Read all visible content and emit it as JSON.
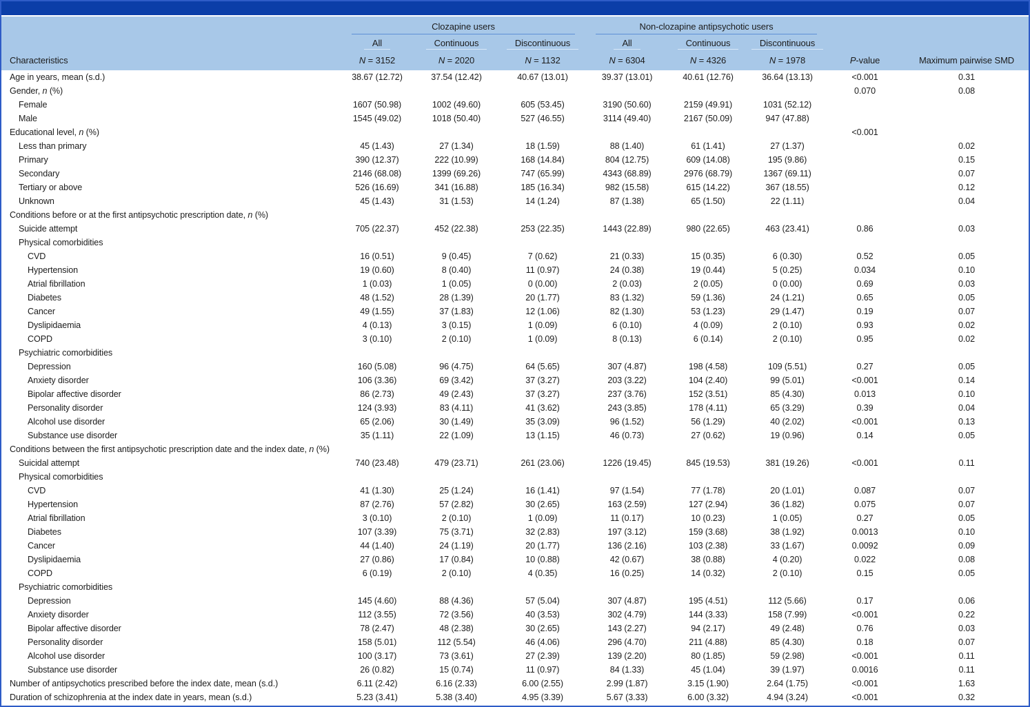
{
  "colors": {
    "top_bar": "#0b3ea8",
    "header_band": "#a8c8e8",
    "frame_border": "#2e5cc7",
    "group_rule": "#5c8fd6",
    "text": "#1c1c1c"
  },
  "header": {
    "characteristics_label": "Characteristics",
    "pvalue_label": "<i>P</i>-value",
    "smd_label": "Maximum pairwise SMD",
    "groups": [
      {
        "label": "Clozapine users",
        "cols": [
          {
            "label": "All",
            "n": "<i>N</i> = 3152"
          },
          {
            "label": "Continuous",
            "n": "<i>N</i> = 2020"
          },
          {
            "label": "Discontinuous",
            "n": "<i>N</i> = 1132"
          }
        ]
      },
      {
        "label": "Non-clozapine antipsychotic users",
        "cols": [
          {
            "label": "All",
            "n": "<i>N</i> = 6304"
          },
          {
            "label": "Continuous",
            "n": "<i>N</i> = 4326"
          },
          {
            "label": "Discontinuous",
            "n": "<i>N</i> = 1978"
          }
        ]
      }
    ]
  },
  "rows": [
    {
      "indent": 0,
      "label": "Age in years, mean (s.d.)",
      "values": [
        "38.67 (12.72)",
        "37.54 (12.42)",
        "40.67 (13.01)",
        "39.37 (13.01)",
        "40.61 (12.76)",
        "36.64 (13.13)"
      ],
      "p": "<0.001",
      "smd": "0.31"
    },
    {
      "indent": 0,
      "label": "Gender, <i>n</i> (%)",
      "values": [
        "",
        "",
        "",
        "",
        "",
        ""
      ],
      "p": "0.070",
      "smd": "0.08"
    },
    {
      "indent": 1,
      "label": "Female",
      "values": [
        "1607 (50.98)",
        "1002 (49.60)",
        "605 (53.45)",
        "3190 (50.60)",
        "2159 (49.91)",
        "1031 (52.12)"
      ],
      "p": "",
      "smd": ""
    },
    {
      "indent": 1,
      "label": "Male",
      "values": [
        "1545 (49.02)",
        "1018 (50.40)",
        "527 (46.55)",
        "3114 (49.40)",
        "2167 (50.09)",
        "947 (47.88)"
      ],
      "p": "",
      "smd": ""
    },
    {
      "indent": 0,
      "label": "Educational level, <i>n</i> (%)",
      "values": [
        "",
        "",
        "",
        "",
        "",
        ""
      ],
      "p": "<0.001",
      "smd": ""
    },
    {
      "indent": 1,
      "label": "Less than primary",
      "values": [
        "45 (1.43)",
        "27 (1.34)",
        "18 (1.59)",
        "88 (1.40)",
        "61 (1.41)",
        "27 (1.37)"
      ],
      "p": "",
      "smd": "0.02"
    },
    {
      "indent": 1,
      "label": "Primary",
      "values": [
        "390 (12.37)",
        "222 (10.99)",
        "168 (14.84)",
        "804 (12.75)",
        "609 (14.08)",
        "195 (9.86)"
      ],
      "p": "",
      "smd": "0.15"
    },
    {
      "indent": 1,
      "label": "Secondary",
      "values": [
        "2146 (68.08)",
        "1399 (69.26)",
        "747 (65.99)",
        "4343 (68.89)",
        "2976 (68.79)",
        "1367 (69.11)"
      ],
      "p": "",
      "smd": "0.07"
    },
    {
      "indent": 1,
      "label": "Tertiary or above",
      "values": [
        "526 (16.69)",
        "341 (16.88)",
        "185 (16.34)",
        "982 (15.58)",
        "615 (14.22)",
        "367 (18.55)"
      ],
      "p": "",
      "smd": "0.12"
    },
    {
      "indent": 1,
      "label": "Unknown",
      "values": [
        "45 (1.43)",
        "31 (1.53)",
        "14 (1.24)",
        "87 (1.38)",
        "65 (1.50)",
        "22 (1.11)"
      ],
      "p": "",
      "smd": "0.04"
    },
    {
      "indent": 0,
      "label": "Conditions before or at the first antipsychotic prescription date, <i>n</i> (%)",
      "values": [
        "",
        "",
        "",
        "",
        "",
        ""
      ],
      "p": "",
      "smd": ""
    },
    {
      "indent": 1,
      "label": "Suicide attempt",
      "values": [
        "705 (22.37)",
        "452 (22.38)",
        "253 (22.35)",
        "1443 (22.89)",
        "980 (22.65)",
        "463 (23.41)"
      ],
      "p": "0.86",
      "smd": "0.03"
    },
    {
      "indent": 1,
      "label": "Physical comorbidities",
      "values": [
        "",
        "",
        "",
        "",
        "",
        ""
      ],
      "p": "",
      "smd": ""
    },
    {
      "indent": 2,
      "label": "CVD",
      "values": [
        "16 (0.51)",
        "9 (0.45)",
        "7 (0.62)",
        "21 (0.33)",
        "15 (0.35)",
        "6 (0.30)"
      ],
      "p": "0.52",
      "smd": "0.05"
    },
    {
      "indent": 2,
      "label": "Hypertension",
      "values": [
        "19 (0.60)",
        "8 (0.40)",
        "11 (0.97)",
        "24 (0.38)",
        "19 (0.44)",
        "5 (0.25)"
      ],
      "p": "0.034",
      "smd": "0.10"
    },
    {
      "indent": 2,
      "label": "Atrial fibrillation",
      "values": [
        "1 (0.03)",
        "1 (0.05)",
        "0 (0.00)",
        "2 (0.03)",
        "2 (0.05)",
        "0 (0.00)"
      ],
      "p": "0.69",
      "smd": "0.03"
    },
    {
      "indent": 2,
      "label": "Diabetes",
      "values": [
        "48 (1.52)",
        "28 (1.39)",
        "20 (1.77)",
        "83 (1.32)",
        "59 (1.36)",
        "24 (1.21)"
      ],
      "p": "0.65",
      "smd": "0.05"
    },
    {
      "indent": 2,
      "label": "Cancer",
      "values": [
        "49 (1.55)",
        "37 (1.83)",
        "12 (1.06)",
        "82 (1.30)",
        "53 (1.23)",
        "29 (1.47)"
      ],
      "p": "0.19",
      "smd": "0.07"
    },
    {
      "indent": 2,
      "label": "Dyslipidaemia",
      "values": [
        "4 (0.13)",
        "3 (0.15)",
        "1 (0.09)",
        "6 (0.10)",
        "4 (0.09)",
        "2 (0.10)"
      ],
      "p": "0.93",
      "smd": "0.02"
    },
    {
      "indent": 2,
      "label": "COPD",
      "values": [
        "3 (0.10)",
        "2 (0.10)",
        "1 (0.09)",
        "8 (0.13)",
        "6 (0.14)",
        "2 (0.10)"
      ],
      "p": "0.95",
      "smd": "0.02"
    },
    {
      "indent": 1,
      "label": "Psychiatric comorbidities",
      "values": [
        "",
        "",
        "",
        "",
        "",
        ""
      ],
      "p": "",
      "smd": ""
    },
    {
      "indent": 2,
      "label": "Depression",
      "values": [
        "160 (5.08)",
        "96 (4.75)",
        "64 (5.65)",
        "307 (4.87)",
        "198 (4.58)",
        "109 (5.51)"
      ],
      "p": "0.27",
      "smd": "0.05"
    },
    {
      "indent": 2,
      "label": "Anxiety disorder",
      "values": [
        "106 (3.36)",
        "69 (3.42)",
        "37 (3.27)",
        "203 (3.22)",
        "104 (2.40)",
        "99 (5.01)"
      ],
      "p": "<0.001",
      "smd": "0.14"
    },
    {
      "indent": 2,
      "label": "Bipolar affective disorder",
      "values": [
        "86 (2.73)",
        "49 (2.43)",
        "37 (3.27)",
        "237 (3.76)",
        "152 (3.51)",
        "85 (4.30)"
      ],
      "p": "0.013",
      "smd": "0.10"
    },
    {
      "indent": 2,
      "label": "Personality disorder",
      "values": [
        "124 (3.93)",
        "83 (4.11)",
        "41 (3.62)",
        "243 (3.85)",
        "178 (4.11)",
        "65 (3.29)"
      ],
      "p": "0.39",
      "smd": "0.04"
    },
    {
      "indent": 2,
      "label": "Alcohol use disorder",
      "values": [
        "65 (2.06)",
        "30 (1.49)",
        "35 (3.09)",
        "96 (1.52)",
        "56 (1.29)",
        "40 (2.02)"
      ],
      "p": "<0.001",
      "smd": "0.13"
    },
    {
      "indent": 2,
      "label": "Substance use disorder",
      "values": [
        "35 (1.11)",
        "22 (1.09)",
        "13 (1.15)",
        "46 (0.73)",
        "27 (0.62)",
        "19 (0.96)"
      ],
      "p": "0.14",
      "smd": "0.05"
    },
    {
      "indent": 0,
      "label": "Conditions between the first antipsychotic prescription date and the index date, <i>n</i> (%)",
      "values": [
        "",
        "",
        "",
        "",
        "",
        ""
      ],
      "p": "",
      "smd": ""
    },
    {
      "indent": 1,
      "label": "Suicidal attempt",
      "values": [
        "740 (23.48)",
        "479 (23.71)",
        "261 (23.06)",
        "1226 (19.45)",
        "845 (19.53)",
        "381 (19.26)"
      ],
      "p": "<0.001",
      "smd": "0.11"
    },
    {
      "indent": 1,
      "label": "Physical comorbidities",
      "values": [
        "",
        "",
        "",
        "",
        "",
        ""
      ],
      "p": "",
      "smd": ""
    },
    {
      "indent": 2,
      "label": "CVD",
      "values": [
        "41 (1.30)",
        "25 (1.24)",
        "16 (1.41)",
        "97 (1.54)",
        "77 (1.78)",
        "20 (1.01)"
      ],
      "p": "0.087",
      "smd": "0.07"
    },
    {
      "indent": 2,
      "label": "Hypertension",
      "values": [
        "87 (2.76)",
        "57 (2.82)",
        "30 (2.65)",
        "163 (2.59)",
        "127 (2.94)",
        "36 (1.82)"
      ],
      "p": "0.075",
      "smd": "0.07"
    },
    {
      "indent": 2,
      "label": "Atrial fibrillation",
      "values": [
        "3 (0.10)",
        "2 (0.10)",
        "1 (0.09)",
        "11 (0.17)",
        "10 (0.23)",
        "1 (0.05)"
      ],
      "p": "0.27",
      "smd": "0.05"
    },
    {
      "indent": 2,
      "label": "Diabetes",
      "values": [
        "107 (3.39)",
        "75 (3.71)",
        "32 (2.83)",
        "197 (3.12)",
        "159 (3.68)",
        "38 (1.92)"
      ],
      "p": "0.0013",
      "smd": "0.10"
    },
    {
      "indent": 2,
      "label": "Cancer",
      "values": [
        "44 (1.40)",
        "24 (1.19)",
        "20 (1.77)",
        "136 (2.16)",
        "103 (2.38)",
        "33 (1.67)"
      ],
      "p": "0.0092",
      "smd": "0.09"
    },
    {
      "indent": 2,
      "label": "Dyslipidaemia",
      "values": [
        "27 (0.86)",
        "17 (0.84)",
        "10 (0.88)",
        "42 (0.67)",
        "38 (0.88)",
        "4 (0.20)"
      ],
      "p": "0.022",
      "smd": "0.08"
    },
    {
      "indent": 2,
      "label": "COPD",
      "values": [
        "6 (0.19)",
        "2 (0.10)",
        "4 (0.35)",
        "16 (0.25)",
        "14 (0.32)",
        "2 (0.10)"
      ],
      "p": "0.15",
      "smd": "0.05"
    },
    {
      "indent": 1,
      "label": "Psychiatric comorbidities",
      "values": [
        "",
        "",
        "",
        "",
        "",
        ""
      ],
      "p": "",
      "smd": ""
    },
    {
      "indent": 2,
      "label": "Depression",
      "values": [
        "145 (4.60)",
        "88 (4.36)",
        "57 (5.04)",
        "307 (4.87)",
        "195 (4.51)",
        "112 (5.66)"
      ],
      "p": "0.17",
      "smd": "0.06"
    },
    {
      "indent": 2,
      "label": "Anxiety disorder",
      "values": [
        "112 (3.55)",
        "72 (3.56)",
        "40 (3.53)",
        "302 (4.79)",
        "144 (3.33)",
        "158 (7.99)"
      ],
      "p": "<0.001",
      "smd": "0.22"
    },
    {
      "indent": 2,
      "label": "Bipolar affective disorder",
      "values": [
        "78 (2.47)",
        "48 (2.38)",
        "30 (2.65)",
        "143 (2.27)",
        "94 (2.17)",
        "49 (2.48)"
      ],
      "p": "0.76",
      "smd": "0.03"
    },
    {
      "indent": 2,
      "label": "Personality disorder",
      "values": [
        "158 (5.01)",
        "112 (5.54)",
        "46 (4.06)",
        "296 (4.70)",
        "211 (4.88)",
        "85 (4.30)"
      ],
      "p": "0.18",
      "smd": "0.07"
    },
    {
      "indent": 2,
      "label": "Alcohol use disorder",
      "values": [
        "100 (3.17)",
        "73 (3.61)",
        "27 (2.39)",
        "139 (2.20)",
        "80 (1.85)",
        "59 (2.98)"
      ],
      "p": "<0.001",
      "smd": "0.11"
    },
    {
      "indent": 2,
      "label": "Substance use disorder",
      "values": [
        "26 (0.82)",
        "15 (0.74)",
        "11 (0.97)",
        "84 (1.33)",
        "45 (1.04)",
        "39 (1.97)"
      ],
      "p": "0.0016",
      "smd": "0.11"
    },
    {
      "indent": 0,
      "label": "Number of antipsychotics prescribed before the index date, mean (s.d.)",
      "values": [
        "6.11 (2.42)",
        "6.16 (2.33)",
        "6.00 (2.55)",
        "2.99 (1.87)",
        "3.15 (1.90)",
        "2.64 (1.75)"
      ],
      "p": "<0.001",
      "smd": "1.63"
    },
    {
      "indent": 0,
      "label": "Duration of schizophrenia at the index date in years, mean (s.d.)",
      "values": [
        "5.23 (3.41)",
        "5.38 (3.40)",
        "4.95 (3.39)",
        "5.67 (3.33)",
        "6.00 (3.32)",
        "4.94 (3.24)"
      ],
      "p": "<0.001",
      "smd": "0.32"
    }
  ]
}
